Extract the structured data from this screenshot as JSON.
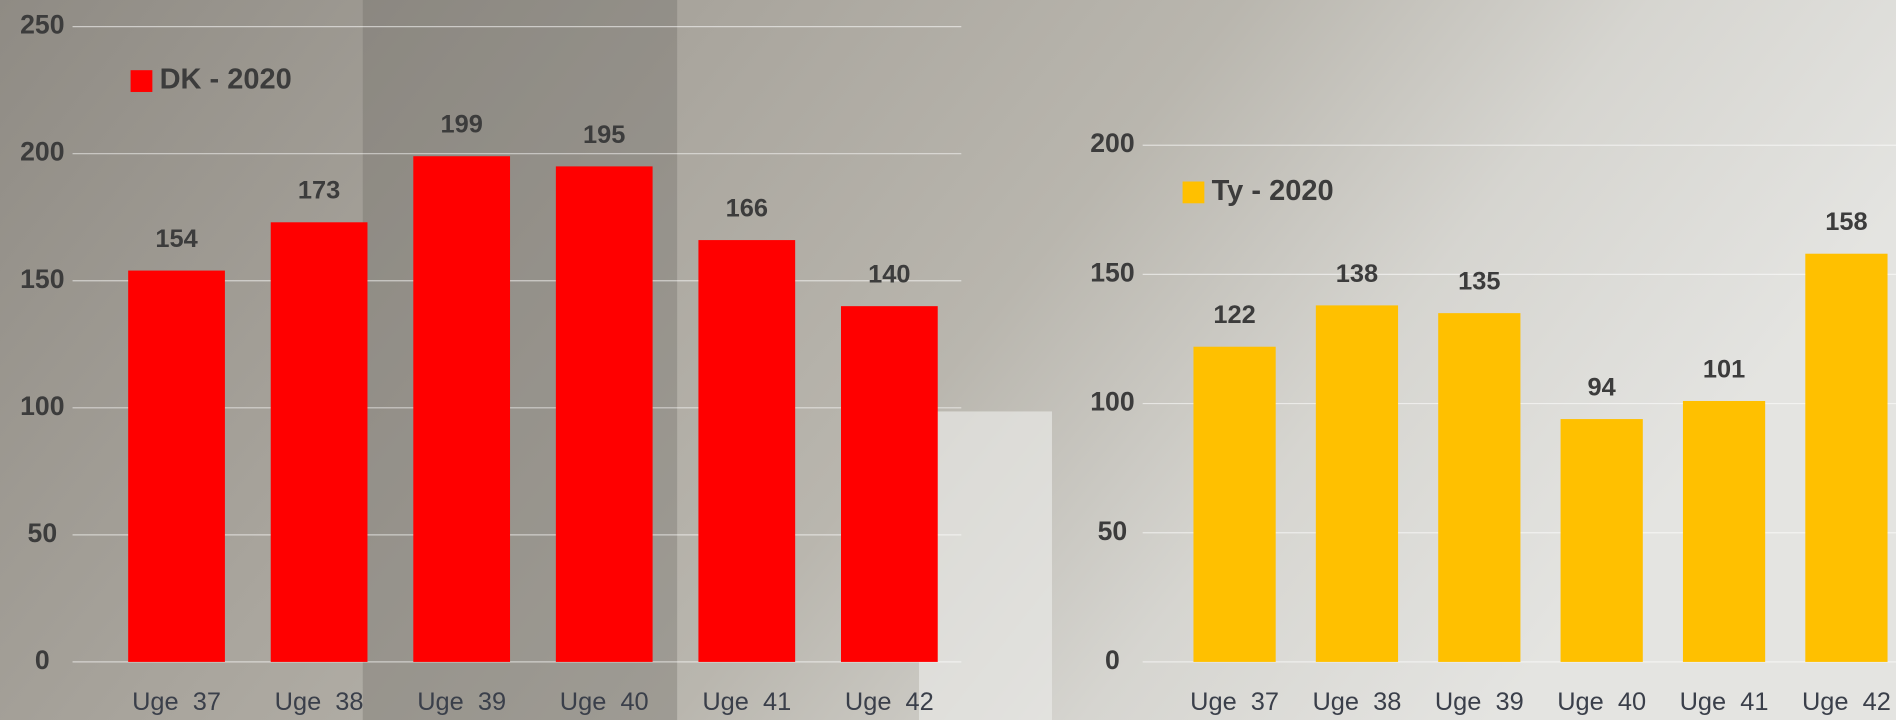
{
  "chart_data": [
    {
      "type": "bar",
      "legend": "DK - 2020",
      "color": "#ff0000",
      "categories": [
        "Uge  37",
        "Uge  38",
        "Uge  39",
        "Uge  40",
        "Uge  41",
        "Uge  42"
      ],
      "values": [
        154,
        173,
        199,
        195,
        166,
        140
      ],
      "ylim": [
        0,
        250
      ],
      "yticks": [
        0,
        50,
        100,
        150,
        200,
        250
      ],
      "grid": true
    },
    {
      "type": "bar",
      "legend": "Ty - 2020",
      "color": "#ffc000",
      "categories": [
        "Uge  37",
        "Uge  38",
        "Uge  39",
        "Uge  40",
        "Uge  41",
        "Uge  42"
      ],
      "values": [
        122,
        138,
        135,
        94,
        101,
        158
      ],
      "ylim": [
        0,
        200
      ],
      "yticks": [
        0,
        50,
        100,
        150,
        200
      ],
      "grid": true
    }
  ]
}
